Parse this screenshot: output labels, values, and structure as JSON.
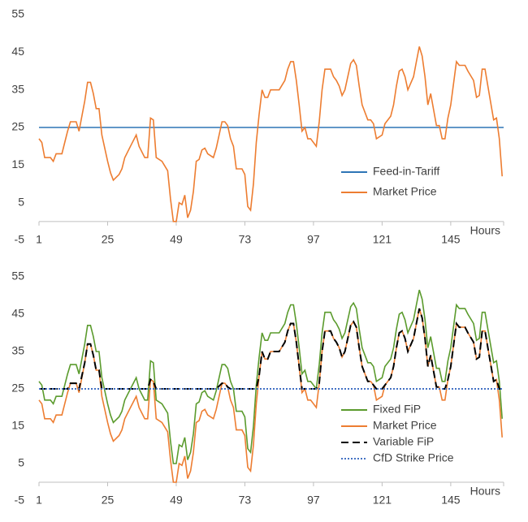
{
  "chart_data": [
    {
      "type": "line",
      "x": [
        1,
        2,
        3,
        5,
        6,
        7,
        9,
        10,
        11,
        12,
        14,
        15,
        17,
        18,
        19,
        20,
        21,
        22,
        23,
        25,
        26,
        27,
        29,
        30,
        31,
        33,
        35,
        36,
        38,
        39,
        40,
        41,
        42,
        44,
        46,
        47,
        48,
        49,
        50,
        51,
        52,
        53,
        54,
        55,
        56,
        57,
        58,
        59,
        60,
        62,
        63,
        65,
        66,
        67,
        68,
        69,
        70,
        72,
        73,
        74,
        75,
        76,
        77,
        78,
        79,
        80,
        81,
        82,
        85,
        87,
        88,
        89,
        90,
        91,
        92,
        93,
        94,
        95,
        96,
        98,
        99,
        100,
        101,
        103,
        104,
        105,
        106,
        107,
        108,
        110,
        111,
        112,
        113,
        114,
        116,
        117,
        118,
        119,
        121,
        122,
        124,
        125,
        126,
        127,
        128,
        129,
        130,
        132,
        133,
        134,
        135,
        136,
        137,
        138,
        140,
        141,
        142,
        143,
        144,
        145,
        147,
        148,
        150,
        151,
        153,
        154,
        155,
        156,
        157,
        158,
        160,
        161,
        162,
        163
      ],
      "x_label": "Hours",
      "xlim": [
        1,
        163.5
      ],
      "xticks": [
        1,
        25,
        49,
        73,
        97,
        121,
        145
      ],
      "ylim": [
        -5,
        55
      ],
      "yticks": [
        -5,
        5,
        15,
        25,
        35,
        45,
        55
      ],
      "legend": "lower right",
      "series": [
        {
          "name": "Feed-in-Tariff",
          "color": "#2e75b6",
          "line_style": "solid",
          "x": [
            1,
            163.5
          ],
          "values": [
            25,
            25
          ]
        },
        {
          "name": "Market Price",
          "color": "#ed7d31",
          "line_style": "solid",
          "values": [
            22,
            21,
            17,
            17,
            16,
            18,
            18,
            21,
            24,
            26.5,
            26.5,
            24,
            32,
            37,
            37,
            34,
            30,
            30,
            23,
            16,
            13,
            11,
            12.5,
            14,
            17,
            20,
            23,
            20,
            17,
            17,
            27.5,
            27,
            17,
            16,
            13.5,
            6,
            0,
            0,
            5,
            4.5,
            7,
            1,
            3,
            8,
            16,
            16.5,
            19,
            19.5,
            18,
            17,
            19.5,
            26.5,
            26.5,
            25.5,
            22,
            20,
            14,
            14,
            12.5,
            4,
            3,
            10,
            21,
            28.5,
            35,
            33,
            33,
            35,
            35,
            37.5,
            40.5,
            42.5,
            42.5,
            37.5,
            31,
            24,
            25,
            22,
            22,
            20,
            26.5,
            35,
            40.5,
            40.5,
            38.5,
            37.5,
            36,
            33.5,
            35,
            42,
            43,
            41.5,
            36,
            31,
            27,
            27,
            26,
            22,
            23,
            26,
            28,
            31,
            36,
            40,
            40.5,
            38.5,
            35,
            38.5,
            42.5,
            46.5,
            44,
            38.5,
            31,
            34,
            25.5,
            25.5,
            22,
            22,
            27.5,
            31,
            42.5,
            41.5,
            41.5,
            40,
            37.5,
            33,
            33.5,
            40.5,
            40.5,
            36,
            27,
            27.5,
            22,
            12
          ]
        }
      ]
    },
    {
      "type": "line",
      "x": [
        1,
        2,
        3,
        5,
        6,
        7,
        9,
        10,
        11,
        12,
        14,
        15,
        17,
        18,
        19,
        20,
        21,
        22,
        23,
        25,
        26,
        27,
        29,
        30,
        31,
        33,
        35,
        36,
        38,
        39,
        40,
        41,
        42,
        44,
        46,
        47,
        48,
        49,
        50,
        51,
        52,
        53,
        54,
        55,
        56,
        57,
        58,
        59,
        60,
        62,
        63,
        65,
        66,
        67,
        68,
        69,
        70,
        72,
        73,
        74,
        75,
        76,
        77,
        78,
        79,
        80,
        81,
        82,
        85,
        87,
        88,
        89,
        90,
        91,
        92,
        93,
        94,
        95,
        96,
        98,
        99,
        100,
        101,
        103,
        104,
        105,
        106,
        107,
        108,
        110,
        111,
        112,
        113,
        114,
        116,
        117,
        118,
        119,
        121,
        122,
        124,
        125,
        126,
        127,
        128,
        129,
        130,
        132,
        133,
        134,
        135,
        136,
        137,
        138,
        140,
        141,
        142,
        143,
        144,
        145,
        147,
        148,
        150,
        151,
        153,
        154,
        155,
        156,
        157,
        158,
        160,
        161,
        162,
        163
      ],
      "x_label": "Hours",
      "xlim": [
        1,
        163.5
      ],
      "xticks": [
        1,
        25,
        49,
        73,
        97,
        121,
        145
      ],
      "ylim": [
        -5,
        55
      ],
      "yticks": [
        -5,
        5,
        15,
        25,
        35,
        45,
        55
      ],
      "legend": "lower right",
      "series": [
        {
          "name": "Fixed FiP",
          "color": "#5b9b2d",
          "line_style": "solid",
          "values": [
            27,
            26,
            22,
            22,
            21,
            23,
            23,
            26,
            29,
            31.5,
            31.5,
            29,
            37,
            42,
            42,
            39,
            35,
            35,
            28,
            21,
            18,
            16,
            17.5,
            19,
            22,
            25,
            28,
            25,
            22,
            22,
            32.5,
            32,
            22,
            21,
            18.5,
            11,
            5,
            5,
            10,
            9.5,
            12,
            6,
            8,
            13,
            21,
            21.5,
            24,
            24.5,
            23,
            22,
            24.5,
            31.5,
            31.5,
            30.5,
            27,
            25,
            19,
            19,
            17.5,
            9,
            8,
            15,
            26,
            33.5,
            40,
            38,
            38,
            40,
            40,
            42.5,
            45.5,
            47.5,
            47.5,
            42.5,
            36,
            29,
            30,
            27,
            27,
            25,
            31.5,
            40,
            45.5,
            45.5,
            43.5,
            42.5,
            41,
            38.5,
            40,
            47,
            48,
            46.5,
            41,
            36,
            32,
            32,
            31,
            27,
            28,
            31,
            33,
            36,
            41,
            45,
            45.5,
            43.5,
            40,
            43.5,
            47.5,
            51.5,
            49,
            43.5,
            36,
            39,
            30.5,
            30.5,
            27,
            27,
            32.5,
            36,
            47.5,
            46.5,
            46.5,
            45,
            42.5,
            38,
            38.5,
            45.5,
            45.5,
            41,
            32,
            32.5,
            27,
            17
          ]
        },
        {
          "name": "Market Price",
          "color": "#ed7d31",
          "line_style": "solid",
          "values": [
            22,
            21,
            17,
            17,
            16,
            18,
            18,
            21,
            24,
            26.5,
            26.5,
            24,
            32,
            37,
            37,
            34,
            30,
            30,
            23,
            16,
            13,
            11,
            12.5,
            14,
            17,
            20,
            23,
            20,
            17,
            17,
            27.5,
            27,
            17,
            16,
            13.5,
            6,
            0,
            0,
            5,
            4.5,
            7,
            1,
            3,
            8,
            16,
            16.5,
            19,
            19.5,
            18,
            17,
            19.5,
            26.5,
            26.5,
            25.5,
            22,
            20,
            14,
            14,
            12.5,
            4,
            3,
            10,
            21,
            28.5,
            35,
            33,
            33,
            35,
            35,
            37.5,
            40.5,
            42.5,
            42.5,
            37.5,
            31,
            24,
            25,
            22,
            22,
            20,
            26.5,
            35,
            40.5,
            40.5,
            38.5,
            37.5,
            36,
            33.5,
            35,
            42,
            43,
            41.5,
            36,
            31,
            27,
            27,
            26,
            22,
            23,
            26,
            28,
            31,
            36,
            40,
            40.5,
            38.5,
            35,
            38.5,
            42.5,
            46.5,
            44,
            38.5,
            31,
            34,
            25.5,
            25.5,
            22,
            22,
            27.5,
            31,
            42.5,
            41.5,
            41.5,
            40,
            37.5,
            33,
            33.5,
            40.5,
            40.5,
            36,
            27,
            27.5,
            22,
            12
          ]
        },
        {
          "name": "Variable FiP",
          "color": "#000000",
          "line_style": "dashed",
          "values": [
            25,
            25,
            25,
            25,
            25,
            25,
            25,
            25,
            25,
            26.5,
            26.5,
            25,
            32,
            37,
            37,
            34,
            30,
            30,
            25,
            25,
            25,
            25,
            25,
            25,
            25,
            25,
            25,
            25,
            25,
            25,
            27.5,
            27,
            25,
            25,
            25,
            25,
            25,
            25,
            25,
            25,
            25,
            25,
            25,
            25,
            25,
            25,
            25,
            25,
            25,
            25,
            25,
            26.5,
            26.5,
            25.5,
            25,
            25,
            25,
            25,
            25,
            25,
            25,
            25,
            25,
            28.5,
            35,
            33,
            33,
            35,
            35,
            37.5,
            40.5,
            42.5,
            42.5,
            37.5,
            31,
            25,
            25,
            25,
            25,
            25,
            26.5,
            35,
            40.5,
            40.5,
            38.5,
            37.5,
            36,
            33.5,
            35,
            42,
            43,
            41.5,
            36,
            31,
            27,
            27,
            26,
            25,
            25,
            26,
            28,
            31,
            36,
            40,
            40.5,
            38.5,
            35,
            38.5,
            42.5,
            46.5,
            44,
            38.5,
            31,
            34,
            25.5,
            25.5,
            25,
            25,
            27.5,
            31,
            42.5,
            41.5,
            41.5,
            40,
            37.5,
            33,
            33.5,
            40.5,
            40.5,
            36,
            27,
            27.5,
            25,
            25
          ]
        },
        {
          "name": "CfD Strike Price",
          "color": "#4472c4",
          "line_style": "dotted",
          "x": [
            1,
            163.5
          ],
          "values": [
            25,
            25
          ]
        }
      ]
    }
  ]
}
